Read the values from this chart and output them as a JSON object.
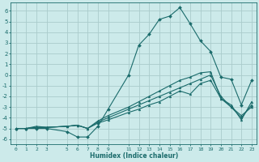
{
  "title": "",
  "xlabel": "Humidex (Indice chaleur)",
  "ylabel": "",
  "background_color": "#cceaea",
  "grid_color": "#aacccc",
  "line_color": "#1a6b6b",
  "xlim": [
    -0.5,
    23.5
  ],
  "ylim": [
    -6.5,
    6.8
  ],
  "xticks": [
    0,
    1,
    2,
    3,
    5,
    6,
    7,
    8,
    9,
    11,
    12,
    13,
    14,
    15,
    16,
    17,
    18,
    19,
    20,
    21,
    22,
    23
  ],
  "yticks": [
    -6,
    -5,
    -4,
    -3,
    -2,
    -1,
    0,
    1,
    2,
    3,
    4,
    5,
    6
  ],
  "series": [
    {
      "x": [
        0,
        1,
        2,
        3,
        5,
        6,
        7,
        8,
        9,
        11,
        12,
        13,
        14,
        15,
        16,
        17,
        18,
        19,
        20,
        21,
        22,
        23
      ],
      "y": [
        -5.0,
        -5.0,
        -5.0,
        -5.0,
        -5.3,
        -5.8,
        -5.8,
        -4.8,
        -3.2,
        0.0,
        2.8,
        3.8,
        5.2,
        5.5,
        6.3,
        4.8,
        3.2,
        2.2,
        -0.2,
        -0.4,
        -2.8,
        -0.5
      ],
      "marker": "D",
      "markersize": 2.0,
      "linewidth": 0.8
    },
    {
      "x": [
        0,
        1,
        2,
        3,
        5,
        6,
        7,
        8,
        9,
        11,
        12,
        13,
        14,
        15,
        16,
        17,
        18,
        19,
        20,
        21,
        22,
        23
      ],
      "y": [
        -5.0,
        -5.0,
        -4.8,
        -4.9,
        -4.8,
        -4.7,
        -5.0,
        -4.5,
        -4.2,
        -3.5,
        -3.2,
        -2.8,
        -2.5,
        -2.0,
        -1.5,
        -1.8,
        -0.8,
        -0.5,
        -2.2,
        -3.0,
        -3.8,
        -3.0
      ],
      "marker": "^",
      "markersize": 2.0,
      "linewidth": 0.8
    },
    {
      "x": [
        0,
        1,
        2,
        3,
        5,
        6,
        7,
        8,
        9,
        11,
        12,
        13,
        14,
        15,
        16,
        17,
        18,
        19,
        20,
        21,
        22,
        23
      ],
      "y": [
        -5.0,
        -5.0,
        -4.9,
        -4.9,
        -4.8,
        -4.7,
        -5.0,
        -4.4,
        -4.0,
        -3.2,
        -2.8,
        -2.4,
        -2.0,
        -1.6,
        -1.2,
        -0.8,
        -0.4,
        -0.0,
        -2.0,
        -3.0,
        -4.0,
        -2.8
      ],
      "marker": "^",
      "markersize": 2.0,
      "linewidth": 0.8
    },
    {
      "x": [
        0,
        1,
        2,
        3,
        5,
        6,
        7,
        8,
        9,
        11,
        12,
        13,
        14,
        15,
        16,
        17,
        18,
        19,
        20,
        21,
        22,
        23
      ],
      "y": [
        -5.0,
        -5.0,
        -4.9,
        -4.9,
        -4.8,
        -4.7,
        -5.0,
        -4.3,
        -3.8,
        -3.0,
        -2.5,
        -2.0,
        -1.5,
        -1.0,
        -0.5,
        -0.2,
        0.2,
        0.3,
        -2.2,
        -2.8,
        -4.2,
        -2.5
      ],
      "marker": "^",
      "markersize": 2.0,
      "linewidth": 0.8
    }
  ]
}
